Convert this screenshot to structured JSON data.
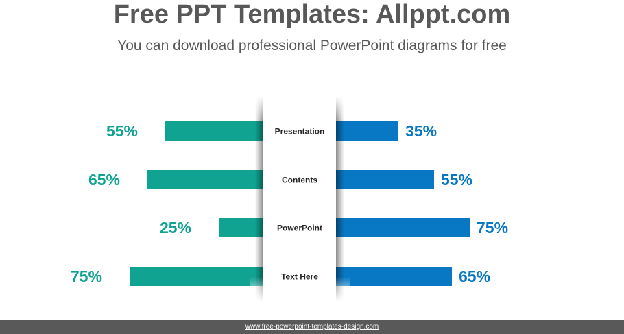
{
  "header": {
    "title": "Free PPT Templates: Allppt.com",
    "subtitle": "You can download professional PowerPoint diagrams for free"
  },
  "chart_data": {
    "type": "bar",
    "categories": [
      "Presentation",
      "Contents",
      "PowerPoint",
      "Text Here"
    ],
    "series": [
      {
        "values": [
          55,
          65,
          25,
          75
        ],
        "color": "#10A392"
      },
      {
        "values": [
          35,
          55,
          75,
          65
        ],
        "color": "#0878C4"
      }
    ],
    "value_labels_left": [
      "55%",
      "65%",
      "25%",
      "75%"
    ],
    "value_labels_right": [
      "35%",
      "55%",
      "75%",
      "65%"
    ]
  },
  "footer": {
    "text": "www.free-powerpoint-templates-design.com"
  }
}
